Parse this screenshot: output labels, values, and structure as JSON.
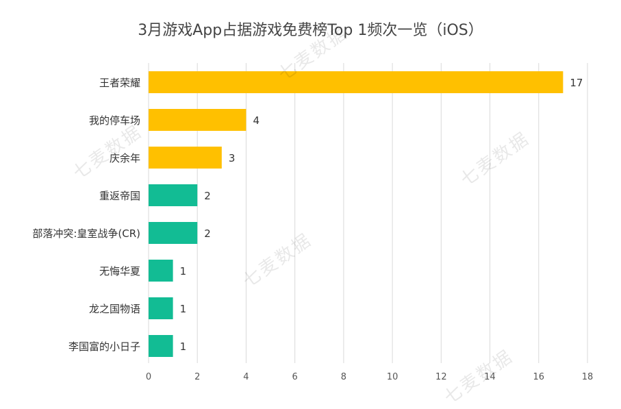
{
  "chart_data": {
    "type": "bar",
    "orientation": "horizontal",
    "title": "3月游戏App占据游戏免费榜Top 1频次一览（iOS）",
    "categories": [
      "王者荣耀",
      "我的停车场",
      "庆余年",
      "重返帝国",
      "部落冲突:皇室战争(CR)",
      "无悔华夏",
      "龙之国物语",
      "李国富的小日子"
    ],
    "values": [
      17,
      4,
      3,
      2,
      2,
      1,
      1,
      1
    ],
    "bar_colors": [
      "#FFC000",
      "#FFC000",
      "#FFC000",
      "#12BC94",
      "#12BC94",
      "#12BC94",
      "#12BC94",
      "#12BC94"
    ],
    "xlim": [
      0,
      18
    ],
    "x_ticks": [
      0,
      2,
      4,
      6,
      8,
      10,
      12,
      14,
      16,
      18
    ],
    "grid": true,
    "data_labels": true
  },
  "watermark": "七麦数据",
  "colors": {
    "gold": "#FFC000",
    "teal": "#12BC94",
    "grid": "#D9D9D9"
  }
}
